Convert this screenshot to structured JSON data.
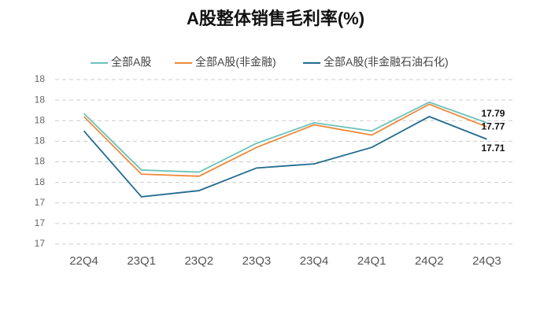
{
  "chart_data": {
    "type": "line",
    "title": "A股整体销售毛利率(%)",
    "categories": [
      "22Q4",
      "23Q1",
      "23Q2",
      "23Q3",
      "23Q4",
      "24Q1",
      "24Q2",
      "24Q3"
    ],
    "series": [
      {
        "name": "全部A股",
        "color": "#6cc3bb",
        "values": [
          17.835,
          17.56,
          17.55,
          17.69,
          17.79,
          17.75,
          17.89,
          17.79
        ]
      },
      {
        "name": "全部A股(非金融)",
        "color": "#ee8a3c",
        "values": [
          17.82,
          17.54,
          17.53,
          17.67,
          17.78,
          17.73,
          17.88,
          17.77
        ]
      },
      {
        "name": "全部A股(非金融石油石化)",
        "color": "#226b8f",
        "values": [
          17.75,
          17.43,
          17.46,
          17.57,
          17.59,
          17.67,
          17.82,
          17.71
        ]
      }
    ],
    "ylim": [
      17.2,
      18.0
    ],
    "yticks": [
      {
        "value": 17.2,
        "label": "17"
      },
      {
        "value": 17.3,
        "label": "17"
      },
      {
        "value": 17.4,
        "label": "17"
      },
      {
        "value": 17.5,
        "label": "18"
      },
      {
        "value": 17.6,
        "label": "18"
      },
      {
        "value": 17.7,
        "label": "18"
      },
      {
        "value": 17.8,
        "label": "18"
      },
      {
        "value": 17.9,
        "label": "18"
      },
      {
        "value": 18.0,
        "label": "18"
      }
    ],
    "grid": true
  }
}
